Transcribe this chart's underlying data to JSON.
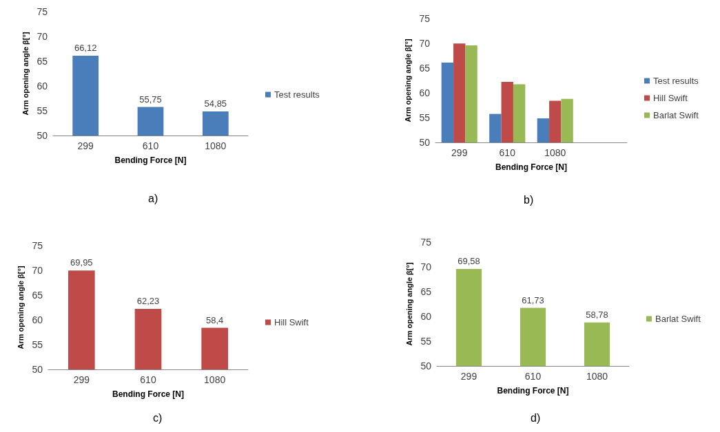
{
  "chart_data": [
    {
      "type": "bar",
      "xlabel": "Bending Force [N]",
      "ylabel": "Arm opening angle β[°]",
      "categories": [
        "299",
        "610",
        "1080"
      ],
      "ylim": [
        50,
        75
      ],
      "yticks": [
        50,
        55,
        60,
        65,
        70,
        75
      ],
      "grid": false,
      "legend": "right",
      "annotations": [
        "a)"
      ],
      "series": [
        {
          "name": "Test results",
          "color": "#4a7ebb",
          "values": [
            66.12,
            55.75,
            54.85
          ],
          "value_labels": [
            "66,12",
            "55,75",
            "54,85"
          ]
        }
      ]
    },
    {
      "type": "bar",
      "xlabel": "Bending Force [N]",
      "ylabel": "Arm opening angle β[°]",
      "categories": [
        "299",
        "610",
        "1080",
        null
      ],
      "ylim": [
        50,
        75
      ],
      "yticks": [
        50,
        55,
        60,
        65,
        70,
        75
      ],
      "grid": false,
      "legend": "right",
      "annotations": [
        "b)"
      ],
      "series": [
        {
          "name": "Test results",
          "color": "#4a7ebb",
          "values": [
            66.12,
            55.75,
            54.85,
            null
          ]
        },
        {
          "name": "Hill Swift",
          "color": "#be4b48",
          "values": [
            69.95,
            62.23,
            58.4,
            null
          ]
        },
        {
          "name": "Barlat Swift",
          "color": "#98b954",
          "values": [
            69.58,
            61.73,
            58.78,
            null
          ]
        }
      ]
    },
    {
      "type": "bar",
      "xlabel": "Bending Force [N]",
      "ylabel": "Arm opening angle β[°]",
      "categories": [
        "299",
        "610",
        "1080"
      ],
      "ylim": [
        50,
        75
      ],
      "yticks": [
        50,
        55,
        60,
        65,
        70,
        75
      ],
      "grid": false,
      "legend": "right",
      "annotations": [
        "c)"
      ],
      "series": [
        {
          "name": "Hill Swift",
          "color": "#be4b48",
          "values": [
            69.95,
            62.23,
            58.4
          ],
          "value_labels": [
            "69,95",
            "62,23",
            "58,4"
          ]
        }
      ]
    },
    {
      "type": "bar",
      "xlabel": "Bending Force [N]",
      "ylabel": "Arm opening angle β[°]",
      "categories": [
        "299",
        "610",
        "1080"
      ],
      "ylim": [
        50,
        75
      ],
      "yticks": [
        50,
        55,
        60,
        65,
        70,
        75
      ],
      "grid": false,
      "legend": "right",
      "annotations": [
        "d)"
      ],
      "series": [
        {
          "name": "Barlat Swift",
          "color": "#98b954",
          "values": [
            69.58,
            61.73,
            58.78
          ],
          "value_labels": [
            "69,58",
            "61,73",
            "58,78"
          ]
        }
      ]
    }
  ]
}
